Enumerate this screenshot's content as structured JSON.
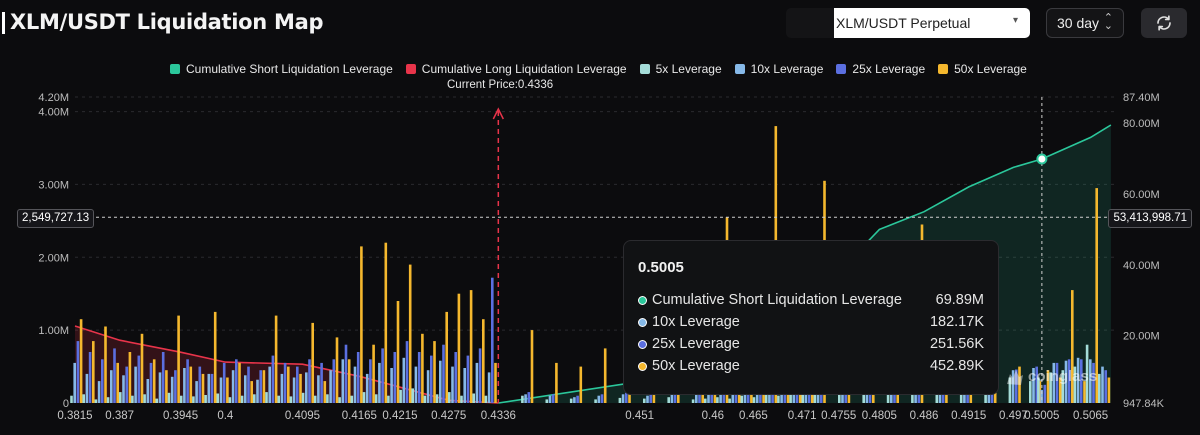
{
  "header": {
    "title": "XLM/USDT Liquidation Map",
    "pair_select": "XLM/USDT Perpetual",
    "period_select": "30 day",
    "refresh_icon": "refresh-icon"
  },
  "colors": {
    "short_cum": "#2bc79b",
    "long_cum": "#e8344a",
    "lev5": "#a4dcd8",
    "lev10": "#86b9e8",
    "lev25": "#5b6fe0",
    "lev50": "#f5b82e"
  },
  "chart_data": {
    "type": "bar",
    "title": "XLM/USDT Liquidation Map",
    "current_price_label": "Current Price:0.4336",
    "current_price": 0.4336,
    "legend_position": "top",
    "legend": [
      "Cumulative Short Liquidation Leverage",
      "Cumulative Long Liquidation Leverage",
      "5x Leverage",
      "10x Leverage",
      "25x Leverage",
      "50x Leverage"
    ],
    "x_ticks": [
      "0.3815",
      "0.387",
      "0.3945",
      "0.4",
      "0.4095",
      "0.4165",
      "0.4215",
      "0.4275",
      "0.4336",
      "0.451",
      "0.46",
      "0.465",
      "0.471",
      "0.4755",
      "0.4805",
      "0.486",
      "0.4915",
      "0.497",
      "0.5005",
      "0.5065"
    ],
    "y_left": {
      "ticks": [
        "0",
        "1.00M",
        "2.00M",
        "3.00M",
        "4.00M",
        "4.20M"
      ],
      "range": [
        0,
        4200000
      ]
    },
    "y_right": {
      "ticks": [
        "947.84K",
        "20.00M",
        "40.00M",
        "60.00M",
        "80.00M",
        "87.40M"
      ],
      "range": [
        947840,
        87400000
      ]
    },
    "crosshair": {
      "x": 0.5005,
      "left_value": "2,549,727.13",
      "right_value": "53,413,998.71"
    },
    "x_range": [
      0.3815,
      0.5095
    ],
    "cumulative_long": {
      "x": [
        0.3815,
        0.387,
        0.3945,
        0.4,
        0.4095,
        0.4165,
        0.4215,
        0.4275,
        0.4336
      ],
      "y": [
        22700000,
        18700000,
        15300000,
        12500000,
        11900000,
        8500000,
        5400000,
        1700000,
        947840
      ]
    },
    "cumulative_short": {
      "x": [
        0.4336,
        0.451,
        0.46,
        0.465,
        0.471,
        0.4755,
        0.4805,
        0.486,
        0.4915,
        0.497,
        0.5005,
        0.5065,
        0.509
      ],
      "y": [
        947840,
        7000000,
        11000000,
        20500000,
        30000000,
        38000000,
        50000000,
        55000000,
        62000000,
        67500000,
        69890000,
        76000000,
        79500000
      ]
    },
    "bars": {
      "x": [
        0.3815,
        0.383,
        0.3845,
        0.386,
        0.3875,
        0.389,
        0.3905,
        0.392,
        0.3935,
        0.395,
        0.3965,
        0.398,
        0.3995,
        0.401,
        0.4025,
        0.404,
        0.4055,
        0.407,
        0.4085,
        0.41,
        0.4115,
        0.413,
        0.4145,
        0.416,
        0.4175,
        0.419,
        0.4205,
        0.422,
        0.4235,
        0.425,
        0.4265,
        0.428,
        0.4295,
        0.431,
        0.4325,
        0.437,
        0.44,
        0.443,
        0.446,
        0.449,
        0.452,
        0.455,
        0.458,
        0.4595,
        0.461,
        0.4625,
        0.464,
        0.4655,
        0.467,
        0.4685,
        0.47,
        0.4715,
        0.473,
        0.476,
        0.479,
        0.482,
        0.485,
        0.488,
        0.491,
        0.494,
        0.497,
        0.4995,
        0.5005,
        0.502,
        0.5035,
        0.505,
        0.5065,
        0.508
      ],
      "lev5": [
        0.1,
        0.12,
        0.05,
        0.08,
        0.15,
        0.1,
        0.12,
        0.06,
        0.14,
        0.1,
        0.09,
        0.11,
        0.13,
        0.08,
        0.1,
        0.12,
        0.15,
        0.1,
        0.09,
        0.14,
        0.1,
        0.12,
        0.08,
        0.1,
        0.15,
        0.12,
        0.1,
        0.18,
        0.2,
        0.1,
        0.12,
        0.15,
        0.1,
        0.13,
        0.1,
        0.1,
        0.05,
        0.06,
        0.05,
        0.07,
        0.06,
        0.08,
        0.05,
        0.06,
        0.08,
        0.06,
        0.1,
        0.08,
        0.12,
        0.1,
        0.15,
        0.12,
        0.15,
        0.2,
        0.18,
        0.25,
        0.2,
        0.25,
        0.22,
        0.3,
        0.35,
        0.3,
        0.35,
        0.42,
        0.45,
        0.5,
        0.8,
        0.4
      ],
      "lev10": [
        0.55,
        0.4,
        0.3,
        0.45,
        0.38,
        0.5,
        0.33,
        0.42,
        0.36,
        0.48,
        0.3,
        0.4,
        0.35,
        0.45,
        0.38,
        0.32,
        0.5,
        0.4,
        0.35,
        0.42,
        0.38,
        0.45,
        0.6,
        0.5,
        0.4,
        0.55,
        0.48,
        0.62,
        0.5,
        0.45,
        0.58,
        0.5,
        0.48,
        0.55,
        0.42,
        0.12,
        0.1,
        0.08,
        0.1,
        0.12,
        0.1,
        0.15,
        0.14,
        0.12,
        0.18,
        0.15,
        0.2,
        0.18,
        0.22,
        0.18,
        0.25,
        0.2,
        0.28,
        0.3,
        0.25,
        0.3,
        0.32,
        0.35,
        0.38,
        0.4,
        0.45,
        0.48,
        0.18,
        0.55,
        0.58,
        0.62,
        0.6,
        0.5
      ],
      "lev25": [
        0.85,
        0.7,
        0.6,
        0.75,
        0.5,
        0.65,
        0.55,
        0.7,
        0.45,
        0.6,
        0.5,
        0.4,
        0.55,
        0.6,
        0.5,
        0.45,
        0.65,
        0.55,
        0.5,
        0.6,
        0.55,
        0.6,
        0.8,
        0.7,
        0.6,
        0.75,
        0.7,
        0.85,
        0.7,
        0.65,
        0.8,
        0.7,
        0.65,
        0.75,
        1.72,
        0.15,
        0.12,
        0.1,
        0.12,
        0.14,
        0.12,
        0.18,
        0.16,
        0.14,
        0.2,
        0.18,
        0.22,
        0.2,
        0.25,
        0.22,
        0.28,
        0.24,
        0.3,
        0.32,
        0.28,
        0.34,
        0.36,
        0.38,
        0.4,
        0.42,
        0.46,
        0.5,
        0.25,
        0.55,
        0.6,
        0.6,
        0.55,
        0.45
      ],
      "lev50": [
        1.15,
        0.85,
        1.05,
        0.55,
        0.7,
        0.95,
        0.6,
        0.45,
        1.2,
        0.5,
        0.4,
        1.25,
        0.35,
        0.55,
        0.3,
        0.45,
        1.2,
        0.5,
        0.4,
        1.1,
        0.3,
        0.9,
        0.6,
        2.15,
        0.8,
        2.2,
        1.4,
        1.9,
        0.95,
        0.85,
        1.25,
        1.5,
        1.55,
        1.15,
        0.55,
        1.0,
        0.55,
        0.5,
        0.75,
        0.6,
        0.45,
        0.7,
        0.55,
        0.85,
        2.55,
        0.65,
        1.75,
        0.55,
        3.8,
        0.55,
        1.9,
        0.6,
        3.05,
        0.3,
        0.4,
        0.3,
        2.45,
        0.35,
        0.45,
        1.95,
        0.5,
        0.3,
        0.45,
        0.35,
        1.55,
        0.3,
        2.95,
        0.35
      ]
    }
  },
  "tooltip": {
    "title": "0.5005",
    "rows": [
      {
        "name": "Cumulative Short Liquidation Leverage",
        "value": "69.89M",
        "color": "#2bc79b"
      },
      {
        "name": "10x Leverage",
        "value": "182.17K",
        "color": "#86b9e8"
      },
      {
        "name": "25x Leverage",
        "value": "251.56K",
        "color": "#5b6fe0"
      },
      {
        "name": "50x Leverage",
        "value": "452.89K",
        "color": "#f5b82e"
      }
    ]
  },
  "watermark": "coinglass"
}
